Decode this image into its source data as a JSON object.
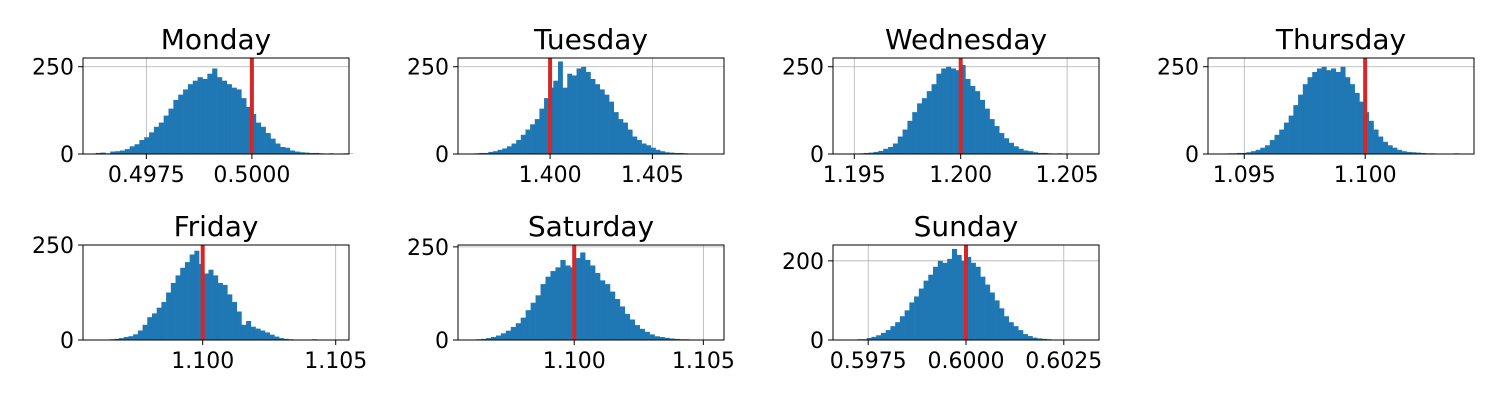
{
  "chart_data": [
    {
      "type": "histogram",
      "title": "Monday",
      "xlim": [
        0.496,
        0.5023
      ],
      "ylim": [
        0,
        275
      ],
      "xticks": [
        0.4975,
        0.5
      ],
      "xtick_labels": [
        "0.4975",
        "0.5000"
      ],
      "yticks": [
        0,
        250
      ],
      "ytick_labels": [
        "0",
        "250"
      ],
      "bin_start": 0.4963,
      "bin_width": 0.000115,
      "counts": [
        3,
        4,
        2,
        7,
        8,
        10,
        14,
        22,
        28,
        40,
        48,
        62,
        78,
        90,
        110,
        130,
        155,
        170,
        185,
        200,
        210,
        220,
        215,
        230,
        245,
        220,
        210,
        200,
        190,
        185,
        160,
        135,
        115,
        90,
        78,
        60,
        44,
        30,
        20,
        18,
        10,
        7,
        5,
        4,
        3,
        3,
        2,
        1,
        2,
        1,
        1,
        2,
        1
      ],
      "reference_line": 0.5,
      "grid": true,
      "bar_color": "#1f77b4",
      "line_color": "#d62728"
    },
    {
      "type": "histogram",
      "title": "Tuesday",
      "xlim": [
        1.3955,
        1.4085
      ],
      "ylim": [
        0,
        275
      ],
      "xticks": [
        1.4,
        1.405
      ],
      "xtick_labels": [
        "1.400",
        "1.405"
      ],
      "yticks": [
        0,
        250
      ],
      "ytick_labels": [
        "0",
        "250"
      ],
      "bin_start": 1.3963,
      "bin_width": 0.000227,
      "counts": [
        2,
        3,
        3,
        6,
        8,
        12,
        16,
        22,
        30,
        40,
        55,
        70,
        85,
        100,
        130,
        160,
        190,
        210,
        265,
        190,
        230,
        225,
        245,
        250,
        235,
        215,
        200,
        185,
        170,
        150,
        120,
        100,
        90,
        70,
        50,
        40,
        30,
        25,
        18,
        12,
        8,
        5,
        4,
        3,
        3,
        2,
        1,
        1,
        1,
        1
      ],
      "reference_line": 1.4,
      "grid": true,
      "bar_color": "#1f77b4",
      "line_color": "#d62728"
    },
    {
      "type": "histogram",
      "title": "Wednesday",
      "xlim": [
        1.194,
        1.2065
      ],
      "ylim": [
        0,
        275
      ],
      "xticks": [
        1.195,
        1.2,
        1.205
      ],
      "xtick_labels": [
        "1.195",
        "1.200",
        "1.205"
      ],
      "yticks": [
        0,
        250
      ],
      "ytick_labels": [
        "0",
        "250"
      ],
      "bin_start": 1.195,
      "bin_width": 0.000227,
      "counts": [
        1,
        2,
        3,
        4,
        6,
        9,
        15,
        20,
        30,
        50,
        70,
        95,
        120,
        145,
        160,
        180,
        200,
        230,
        245,
        250,
        245,
        240,
        255,
        215,
        195,
        180,
        155,
        130,
        100,
        80,
        60,
        45,
        32,
        22,
        15,
        10,
        8,
        5,
        3,
        3,
        2,
        1,
        2,
        1,
        1,
        1,
        1,
        1
      ],
      "reference_line": 1.2,
      "grid": true,
      "bar_color": "#1f77b4",
      "line_color": "#d62728"
    },
    {
      "type": "histogram",
      "title": "Thursday",
      "xlim": [
        1.0935,
        1.1045
      ],
      "ylim": [
        0,
        275
      ],
      "xticks": [
        1.095,
        1.1
      ],
      "xtick_labels": [
        "1.095",
        "1.100"
      ],
      "yticks": [
        0,
        250
      ],
      "ytick_labels": [
        "0",
        "250"
      ],
      "bin_start": 1.0943,
      "bin_width": 0.000195,
      "counts": [
        2,
        2,
        3,
        3,
        5,
        8,
        12,
        18,
        25,
        40,
        55,
        70,
        90,
        110,
        140,
        170,
        200,
        220,
        235,
        245,
        250,
        240,
        245,
        235,
        250,
        220,
        200,
        175,
        150,
        120,
        95,
        70,
        50,
        35,
        25,
        18,
        12,
        8,
        6,
        5,
        4,
        3,
        2,
        2,
        1,
        1,
        1,
        1,
        2,
        1
      ],
      "reference_line": 1.1,
      "grid": true,
      "bar_color": "#1f77b4",
      "line_color": "#d62728"
    },
    {
      "type": "histogram",
      "title": "Friday",
      "xlim": [
        1.0955,
        1.1055
      ],
      "ylim": [
        0,
        250
      ],
      "xticks": [
        1.1,
        1.105
      ],
      "xtick_labels": [
        "1.100",
        "1.105"
      ],
      "yticks": [
        0,
        250
      ],
      "ytick_labels": [
        "0",
        "250"
      ],
      "bin_start": 1.0965,
      "bin_width": 0.000177,
      "counts": [
        2,
        3,
        5,
        8,
        10,
        15,
        25,
        40,
        60,
        70,
        85,
        100,
        125,
        150,
        170,
        190,
        205,
        225,
        235,
        200,
        175,
        185,
        170,
        150,
        145,
        120,
        100,
        75,
        40,
        50,
        35,
        30,
        25,
        20,
        14,
        9,
        5,
        3,
        2,
        1,
        1,
        1,
        1,
        2
      ],
      "reference_line": 1.1,
      "grid": true,
      "bar_color": "#1f77b4",
      "line_color": "#d62728"
    },
    {
      "type": "histogram",
      "title": "Saturday",
      "xlim": [
        1.0955,
        1.1058
      ],
      "ylim": [
        0,
        255
      ],
      "xticks": [
        1.1,
        1.105
      ],
      "xtick_labels": [
        "1.100",
        "1.105"
      ],
      "yticks": [
        0,
        250
      ],
      "ytick_labels": [
        "0",
        "250"
      ],
      "bin_start": 1.0962,
      "bin_width": 0.000192,
      "counts": [
        2,
        3,
        5,
        8,
        12,
        18,
        25,
        35,
        45,
        60,
        80,
        100,
        120,
        150,
        170,
        185,
        195,
        215,
        200,
        195,
        220,
        235,
        215,
        200,
        180,
        160,
        150,
        130,
        110,
        90,
        70,
        55,
        40,
        30,
        22,
        15,
        10,
        8,
        6,
        4,
        3,
        2,
        2,
        1
      ],
      "reference_line": 1.1,
      "grid": true,
      "bar_color": "#1f77b4",
      "line_color": "#d62728"
    },
    {
      "type": "histogram",
      "title": "Sunday",
      "xlim": [
        0.5966,
        0.6034
      ],
      "ylim": [
        0,
        240
      ],
      "xticks": [
        0.5975,
        0.6,
        0.6025
      ],
      "xtick_labels": [
        "0.5975",
        "0.6000",
        "0.6025"
      ],
      "yticks": [
        0,
        200
      ],
      "ytick_labels": [
        "0",
        "200"
      ],
      "bin_start": 0.5971,
      "bin_width": 0.000121,
      "counts": [
        1,
        2,
        2,
        5,
        8,
        12,
        18,
        25,
        35,
        45,
        60,
        75,
        95,
        110,
        130,
        150,
        165,
        185,
        200,
        195,
        205,
        230,
        215,
        200,
        210,
        195,
        185,
        160,
        140,
        120,
        100,
        80,
        60,
        45,
        35,
        25,
        15,
        10,
        6,
        4,
        3,
        2
      ],
      "reference_line": 0.6,
      "grid": true,
      "bar_color": "#1f77b4",
      "line_color": "#d62728"
    }
  ]
}
